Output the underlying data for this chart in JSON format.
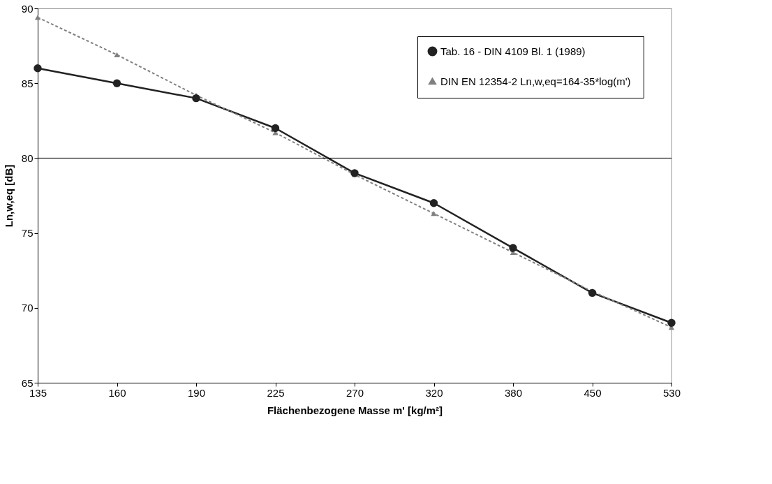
{
  "chart_data": {
    "type": "line",
    "xlabel": "Flächenbezogene Masse m'  [kg/m²]",
    "ylabel": "Ln,w,eq  [dB]",
    "categories": [
      "135",
      "160",
      "190",
      "225",
      "270",
      "320",
      "380",
      "450",
      "530"
    ],
    "ylim": [
      65,
      90
    ],
    "yticks": [
      65,
      70,
      75,
      80,
      85,
      90
    ],
    "grid": false,
    "legend": "top right",
    "ref_lines": [
      {
        "axis": "y",
        "value": 80,
        "color": "#000000"
      }
    ],
    "series": [
      {
        "name": "Tab. 16 - DIN 4109 Bl. 1 (1989)",
        "color": "#222222",
        "marker": "circle",
        "line_style": "solid",
        "values": [
          86,
          85,
          84,
          82,
          79,
          77,
          74,
          71,
          69
        ]
      },
      {
        "name": "DIN EN 12354-2  Ln,w,eq=164-35*log(m')",
        "color": "#808080",
        "marker": "triangle",
        "line_style": "dashed",
        "values": [
          89.4,
          86.9,
          84.2,
          81.7,
          78.9,
          76.3,
          73.7,
          71.1,
          68.7
        ]
      }
    ]
  }
}
